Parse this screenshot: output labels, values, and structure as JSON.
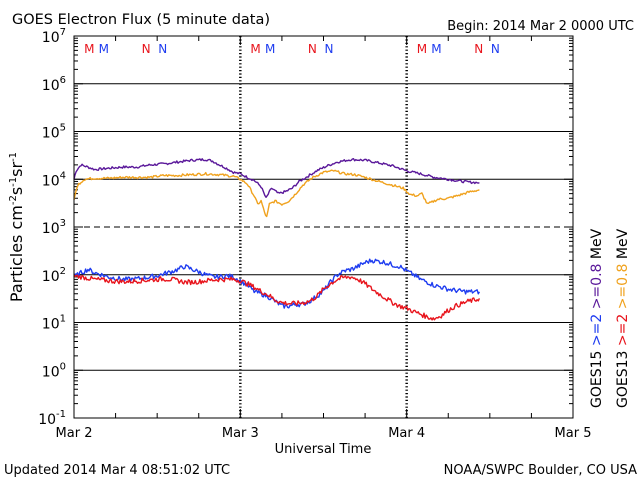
{
  "chart_data": {
    "type": "line",
    "title": "GOES Electron Flux (5 minute data)",
    "begin_label": "Begin: 2014 Mar 2 0000 UTC",
    "xlabel": "Universal Time",
    "ylabel_parts": [
      "Particles cm",
      "-2",
      "s",
      "-1",
      "sr",
      "-1"
    ],
    "updated_label": "Updated 2014 Mar  4 08:51:02 UTC",
    "credit_label": "NOAA/SWPC Boulder, CO USA",
    "x_unit": "hours since Mar 2 0000 UTC",
    "xlim": [
      0,
      72
    ],
    "x_ticks": [
      {
        "x": 0,
        "label": "Mar 2"
      },
      {
        "x": 24,
        "label": "Mar 3"
      },
      {
        "x": 48,
        "label": "Mar 4"
      },
      {
        "x": 72,
        "label": "Mar 5"
      }
    ],
    "y_scale": "log",
    "ylim": [
      0.1,
      10000000
    ],
    "y_ticks": [
      {
        "value": 10000000,
        "base": "10",
        "exp": "7"
      },
      {
        "value": 1000000,
        "base": "10",
        "exp": "6"
      },
      {
        "value": 100000,
        "base": "10",
        "exp": "5"
      },
      {
        "value": 10000,
        "base": "10",
        "exp": "4"
      },
      {
        "value": 1000,
        "base": "10",
        "exp": "3"
      },
      {
        "value": 100,
        "base": "10",
        "exp": "2"
      },
      {
        "value": 10,
        "base": "10",
        "exp": "1"
      },
      {
        "value": 1,
        "base": "10",
        "exp": "0"
      },
      {
        "value": 0.1,
        "base": "10",
        "exp": "-1"
      }
    ],
    "threshold_line": 1000,
    "markers": [
      {
        "x": 2.2,
        "label": "M",
        "color": "#e8141c"
      },
      {
        "x": 4.3,
        "label": "M",
        "color": "#1e3cf0"
      },
      {
        "x": 10.4,
        "label": "N",
        "color": "#e8141c"
      },
      {
        "x": 12.8,
        "label": "N",
        "color": "#1e3cf0"
      },
      {
        "x": 26.2,
        "label": "M",
        "color": "#e8141c"
      },
      {
        "x": 28.3,
        "label": "M",
        "color": "#1e3cf0"
      },
      {
        "x": 34.4,
        "label": "N",
        "color": "#e8141c"
      },
      {
        "x": 36.8,
        "label": "N",
        "color": "#1e3cf0"
      },
      {
        "x": 50.2,
        "label": "M",
        "color": "#e8141c"
      },
      {
        "x": 52.3,
        "label": "M",
        "color": "#1e3cf0"
      },
      {
        "x": 58.4,
        "label": "N",
        "color": "#e8141c"
      },
      {
        "x": 60.8,
        "label": "N",
        "color": "#1e3cf0"
      }
    ],
    "legend": {
      "left_col": [
        {
          "text": "GOES15",
          "color": "#000000"
        },
        {
          "text": ">=2",
          "color": "#1e3cf0"
        },
        {
          "text": ">=0.8",
          "color": "#5a189a"
        },
        {
          "text": "MeV",
          "color": "#000000"
        }
      ],
      "right_col": [
        {
          "text": "GOES13",
          "color": "#000000"
        },
        {
          "text": ">=2",
          "color": "#e8141c"
        },
        {
          "text": ">=0.8",
          "color": "#f0a21e"
        },
        {
          "text": "MeV",
          "color": "#000000"
        }
      ]
    },
    "series": [
      {
        "color": "#5a189a",
        "x": [
          0,
          0.3,
          1,
          2,
          3,
          5,
          7,
          9,
          11,
          13,
          15,
          17,
          19,
          20,
          21,
          22,
          23,
          24,
          25,
          26,
          27,
          27.7,
          28.5,
          29.5,
          30.5,
          31.5,
          32.5,
          33.5,
          35,
          36.5,
          38,
          40,
          42,
          44,
          46,
          48,
          50,
          52,
          54,
          56,
          57.5,
          58.5
        ],
        "y": [
          10000,
          15000,
          20000,
          18000,
          16000,
          17000,
          18000,
          18000,
          20000,
          21000,
          23000,
          25000,
          26000,
          24000,
          20000,
          17000,
          14000,
          13000,
          11000,
          9500,
          7000,
          4000,
          6500,
          5000,
          5500,
          6500,
          9000,
          11000,
          15000,
          19000,
          23000,
          26000,
          25000,
          22000,
          19000,
          15000,
          13000,
          11000,
          10000,
          9000,
          8600,
          8500
        ]
      },
      {
        "color": "#f0a21e",
        "x": [
          0,
          0.3,
          0.7,
          1.5,
          3,
          5,
          7,
          9,
          11,
          13,
          15,
          17,
          19,
          21,
          23,
          24,
          25,
          26,
          26.5,
          27,
          27.5,
          27.8,
          28.2,
          29,
          30,
          31,
          32,
          33,
          34.5,
          36,
          37.5,
          39,
          40.5,
          42,
          44,
          46,
          47.5,
          48.5,
          49.5,
          50.2,
          51,
          52.5,
          54,
          55.5,
          57,
          58.5
        ],
        "y": [
          3500,
          6000,
          8000,
          10000,
          10500,
          10500,
          11000,
          11000,
          11000,
          12000,
          12000,
          12500,
          13000,
          12500,
          11500,
          10000,
          8000,
          4500,
          3000,
          3500,
          2000,
          1600,
          3000,
          3500,
          3000,
          3500,
          5000,
          7500,
          11000,
          14000,
          15000,
          13000,
          12500,
          11000,
          9000,
          7500,
          6500,
          4800,
          4500,
          5000,
          3000,
          3800,
          4000,
          4600,
          5400,
          6000
        ]
      },
      {
        "color": "#1e3cf0",
        "x": [
          0,
          1,
          2,
          3,
          4,
          5,
          6,
          7,
          8,
          9,
          10,
          11,
          12,
          13,
          14,
          15,
          16,
          17,
          18,
          19,
          20,
          21,
          22,
          23,
          24,
          25,
          26,
          27,
          28,
          29,
          30,
          31,
          32,
          33,
          34,
          35,
          36,
          37,
          38,
          39,
          40,
          41,
          42,
          43,
          44,
          45,
          46,
          47,
          48,
          49,
          50,
          51,
          52,
          53,
          54,
          55,
          56,
          57,
          58,
          58.5
        ],
        "y": [
          90,
          110,
          130,
          110,
          100,
          90,
          85,
          80,
          80,
          82,
          85,
          90,
          95,
          105,
          115,
          130,
          150,
          130,
          115,
          100,
          90,
          90,
          95,
          90,
          75,
          60,
          45,
          40,
          35,
          28,
          22,
          22,
          24,
          24,
          28,
          35,
          45,
          70,
          100,
          120,
          130,
          150,
          180,
          200,
          190,
          180,
          160,
          150,
          120,
          100,
          80,
          70,
          60,
          55,
          50,
          47,
          45,
          44,
          44,
          44
        ]
      },
      {
        "color": "#e8141c",
        "x": [
          0,
          1,
          2,
          3,
          4,
          5,
          6,
          7,
          8,
          9,
          10,
          11,
          12,
          13,
          14,
          15,
          16,
          17,
          18,
          19,
          20,
          21,
          22,
          23,
          24,
          25,
          26,
          27,
          28,
          29,
          30,
          31,
          32,
          33,
          34,
          35,
          36,
          37,
          38,
          39,
          40,
          41,
          42,
          43,
          44,
          45,
          46,
          47,
          48,
          49,
          50,
          51,
          52,
          53,
          54,
          55,
          56,
          57,
          58,
          58.5
        ],
        "y": [
          95,
          90,
          85,
          80,
          78,
          75,
          73,
          72,
          72,
          74,
          76,
          78,
          80,
          82,
          80,
          75,
          70,
          70,
          72,
          75,
          78,
          80,
          80,
          80,
          75,
          65,
          55,
          45,
          38,
          30,
          26,
          25,
          25,
          26,
          28,
          35,
          50,
          65,
          80,
          88,
          90,
          80,
          65,
          50,
          40,
          32,
          26,
          22,
          20,
          17,
          15,
          13,
          12,
          14,
          18,
          22,
          25,
          28,
          30,
          32
        ]
      }
    ]
  }
}
